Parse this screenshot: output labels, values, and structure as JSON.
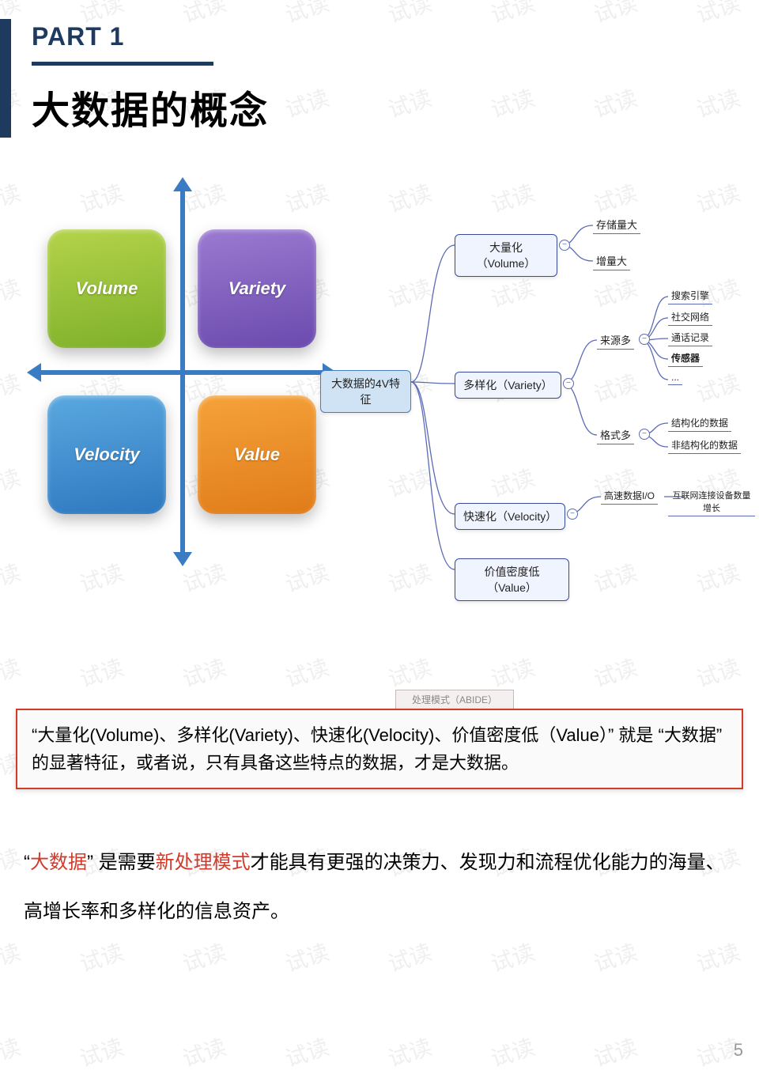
{
  "watermark_text": "试读",
  "header": {
    "part_label": "PART 1",
    "title": "大数据的概念",
    "accent_color": "#1f3a5f"
  },
  "quadrant": {
    "axis_color": "#3a7cc4",
    "boxes": [
      {
        "pos": "tl",
        "label": "Volume",
        "gradient_from": "#b4d34a",
        "gradient_to": "#7eb02a"
      },
      {
        "pos": "tr",
        "label": "Variety",
        "gradient_from": "#9b7ad1",
        "gradient_to": "#6a4aad"
      },
      {
        "pos": "bl",
        "label": "Velocity",
        "gradient_from": "#5aa8e0",
        "gradient_to": "#2e78bf"
      },
      {
        "pos": "br",
        "label": "Value",
        "gradient_from": "#f5a23a",
        "gradient_to": "#e07c1a"
      }
    ]
  },
  "mindmap": {
    "node_border": "#3a4b9b",
    "node_bg": "#f0f4ff",
    "root_bg": "#cfe3f5",
    "line_color": "#5b6bb5",
    "root": "大数据的4V特征",
    "branches": [
      {
        "label": "大量化（Volume）",
        "children": [
          {
            "label": "存储量大"
          },
          {
            "label": "增量大"
          }
        ]
      },
      {
        "label": "多样化（Variety）",
        "sub": [
          {
            "label": "来源多",
            "children": [
              {
                "label": "搜索引擎"
              },
              {
                "label": "社交网络"
              },
              {
                "label": "通话记录"
              },
              {
                "label": "传感器",
                "bold": true
              },
              {
                "label": "..."
              }
            ]
          },
          {
            "label": "格式多",
            "children": [
              {
                "label": "结构化的数据"
              },
              {
                "label": "非结构化的数据"
              }
            ]
          }
        ]
      },
      {
        "label": "快速化（Velocity）",
        "sub": [
          {
            "label": "高速数据I/O",
            "children": [
              {
                "label": "互联网连接设备数量增长"
              }
            ]
          }
        ]
      },
      {
        "label": "价值密度低（Value）"
      }
    ]
  },
  "callout": {
    "tab": "处理模式（ABIDE）",
    "text": "“大量化(Volume)、多样化(Variety)、快速化(Velocity)、价值密度低（Value）” 就是 “大数据” 的显著特征，或者说，只有具备这些特点的数据，才是大数据。",
    "border_color": "#d23a2a"
  },
  "paragraph": {
    "quote_open": "“",
    "red1": "大数据",
    "seg1": "” 是需要",
    "red2": "新处理模式",
    "seg2": "才能具有更强的决策力、发现力和流程优化能力的海量、高增长率和多样化的信息资产。"
  },
  "page_number": "5"
}
